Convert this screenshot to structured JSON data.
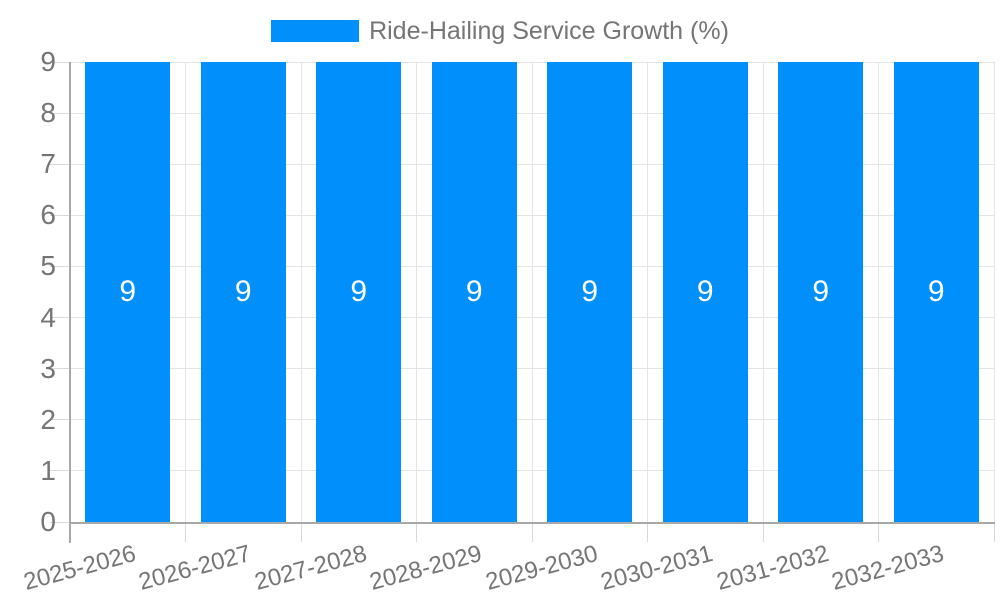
{
  "chart_data": {
    "type": "bar",
    "title": "Ride-Hailing Service Growth (%)",
    "legend": {
      "label": "Ride-Hailing Service Growth (%)",
      "position": "top-center"
    },
    "categories": [
      "2025-2026",
      "2026-2027",
      "2027-2028",
      "2028-2029",
      "2029-2030",
      "2030-2031",
      "2031-2032",
      "2032-2033"
    ],
    "values": [
      9,
      9,
      9,
      9,
      9,
      9,
      9,
      9
    ],
    "bar_value_labels": [
      "9",
      "9",
      "9",
      "9",
      "9",
      "9",
      "9",
      "9"
    ],
    "xlabel": "",
    "ylabel": "",
    "ylim": [
      0,
      9
    ],
    "y_ticks": [
      0,
      1,
      2,
      3,
      4,
      5,
      6,
      7,
      8,
      9
    ],
    "grid": true,
    "x_label_rotation_deg": -15,
    "colors": {
      "bar": "#008FFB",
      "axis_text": "#757575",
      "value_label": "#FFFFFF",
      "gridline": "#E4E4E4",
      "axis_line": "#A8A8A8",
      "tick": "#D9D9D9"
    }
  }
}
